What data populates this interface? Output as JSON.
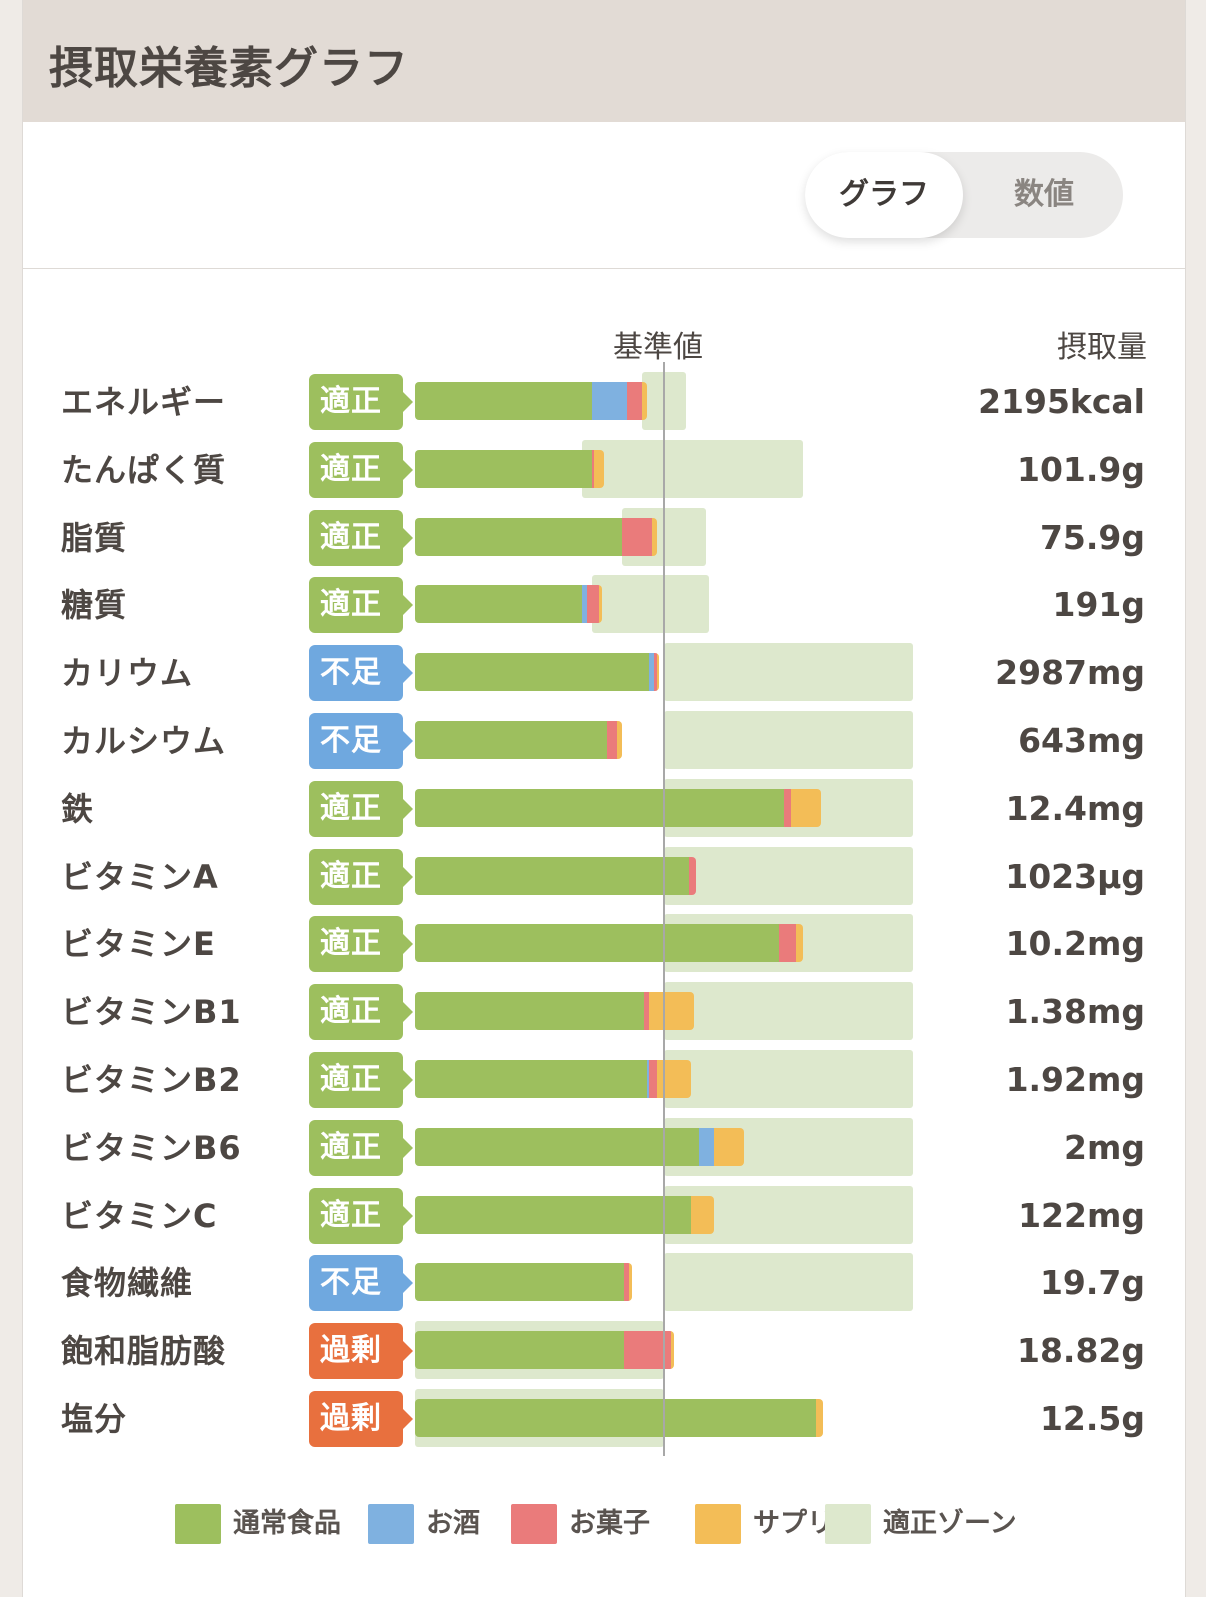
{
  "header": {
    "title": "摂取栄養素グラフ"
  },
  "toggle": {
    "options": [
      {
        "label": "グラフ",
        "active": true
      },
      {
        "label": "数値",
        "active": false
      }
    ]
  },
  "column_headers": {
    "reference": "基準値",
    "intake": "摂取量"
  },
  "colors": {
    "normal_food": "#9dbf5e",
    "alcohol": "#7fb1e0",
    "sweets": "#ea7b7b",
    "supplement": "#f3bd57",
    "zone": "#dde8cd",
    "status_ok": "#9dbf5e",
    "status_low": "#6fa8df",
    "status_high": "#e8703e"
  },
  "chart_data": {
    "type": "bar",
    "stacked": true,
    "unit": "% of reference value",
    "reference_value": 100,
    "series": [
      {
        "key": "normal_food",
        "name": "通常食品"
      },
      {
        "key": "alcohol",
        "name": "お酒"
      },
      {
        "key": "sweets",
        "name": "お菓子"
      },
      {
        "key": "supplement",
        "name": "サプリ"
      },
      {
        "key": "zone",
        "name": "適正ゾーン"
      }
    ],
    "rows": [
      {
        "name": "エネルギー",
        "status": "適正",
        "status_type": "ok",
        "value": "2195kcal",
        "normal_food": 71,
        "alcohol": 14,
        "sweets": 6,
        "supplement": 2,
        "zone": [
          91,
          109
        ]
      },
      {
        "name": "たんぱく質",
        "status": "適正",
        "status_type": "ok",
        "value": "101.9g",
        "normal_food": 71,
        "alcohol": 0,
        "sweets": 1,
        "supplement": 4,
        "zone": [
          67,
          156
        ]
      },
      {
        "name": "脂質",
        "status": "適正",
        "status_type": "ok",
        "value": "75.9g",
        "normal_food": 83,
        "alcohol": 0,
        "sweets": 12,
        "supplement": 2,
        "zone": [
          83,
          117
        ]
      },
      {
        "name": "糖質",
        "status": "適正",
        "status_type": "ok",
        "value": "191g",
        "normal_food": 67,
        "alcohol": 2,
        "sweets": 5,
        "supplement": 1,
        "zone": [
          71,
          118
        ]
      },
      {
        "name": "カリウム",
        "status": "不足",
        "status_type": "low",
        "value": "2987mg",
        "normal_food": 94,
        "alcohol": 2,
        "sweets": 1,
        "supplement": 1,
        "zone": [
          100,
          200
        ]
      },
      {
        "name": "カルシウム",
        "status": "不足",
        "status_type": "low",
        "value": "643mg",
        "normal_food": 77,
        "alcohol": 0,
        "sweets": 4,
        "supplement": 2,
        "zone": [
          100,
          200
        ]
      },
      {
        "name": "鉄",
        "status": "適正",
        "status_type": "ok",
        "value": "12.4mg",
        "normal_food": 148,
        "alcohol": 0,
        "sweets": 3,
        "supplement": 12,
        "zone": [
          100,
          200
        ]
      },
      {
        "name": "ビタミンA",
        "status": "適正",
        "status_type": "ok",
        "value": "1023μg",
        "normal_food": 110,
        "alcohol": 0,
        "sweets": 3,
        "supplement": 0,
        "zone": [
          100,
          200
        ]
      },
      {
        "name": "ビタミンE",
        "status": "適正",
        "status_type": "ok",
        "value": "10.2mg",
        "normal_food": 146,
        "alcohol": 0,
        "sweets": 7,
        "supplement": 3,
        "zone": [
          100,
          200
        ]
      },
      {
        "name": "ビタミンB1",
        "status": "適正",
        "status_type": "ok",
        "value": "1.38mg",
        "normal_food": 92,
        "alcohol": 0,
        "sweets": 2,
        "supplement": 18,
        "zone": [
          100,
          200
        ]
      },
      {
        "name": "ビタミンB2",
        "status": "適正",
        "status_type": "ok",
        "value": "1.92mg",
        "normal_food": 93,
        "alcohol": 1,
        "sweets": 3,
        "supplement": 14,
        "zone": [
          100,
          200
        ]
      },
      {
        "name": "ビタミンB6",
        "status": "適正",
        "status_type": "ok",
        "value": "2mg",
        "normal_food": 114,
        "alcohol": 6,
        "sweets": 0,
        "supplement": 12,
        "zone": [
          100,
          200
        ]
      },
      {
        "name": "ビタミンC",
        "status": "適正",
        "status_type": "ok",
        "value": "122mg",
        "normal_food": 111,
        "alcohol": 0,
        "sweets": 0,
        "supplement": 9,
        "zone": [
          100,
          200
        ]
      },
      {
        "name": "食物繊維",
        "status": "不足",
        "status_type": "low",
        "value": "19.7g",
        "normal_food": 84,
        "alcohol": 0,
        "sweets": 2,
        "supplement": 1,
        "zone": [
          100,
          200
        ]
      },
      {
        "name": "飽和脂肪酸",
        "status": "過剰",
        "status_type": "high",
        "value": "18.82g",
        "normal_food": 84,
        "alcohol": 0,
        "sweets": 19,
        "supplement": 1,
        "zone": [
          0,
          100
        ]
      },
      {
        "name": "塩分",
        "status": "過剰",
        "status_type": "high",
        "value": "12.5g",
        "normal_food": 161,
        "alcohol": 0,
        "sweets": 0,
        "supplement": 3,
        "zone": [
          0,
          100
        ]
      }
    ]
  }
}
